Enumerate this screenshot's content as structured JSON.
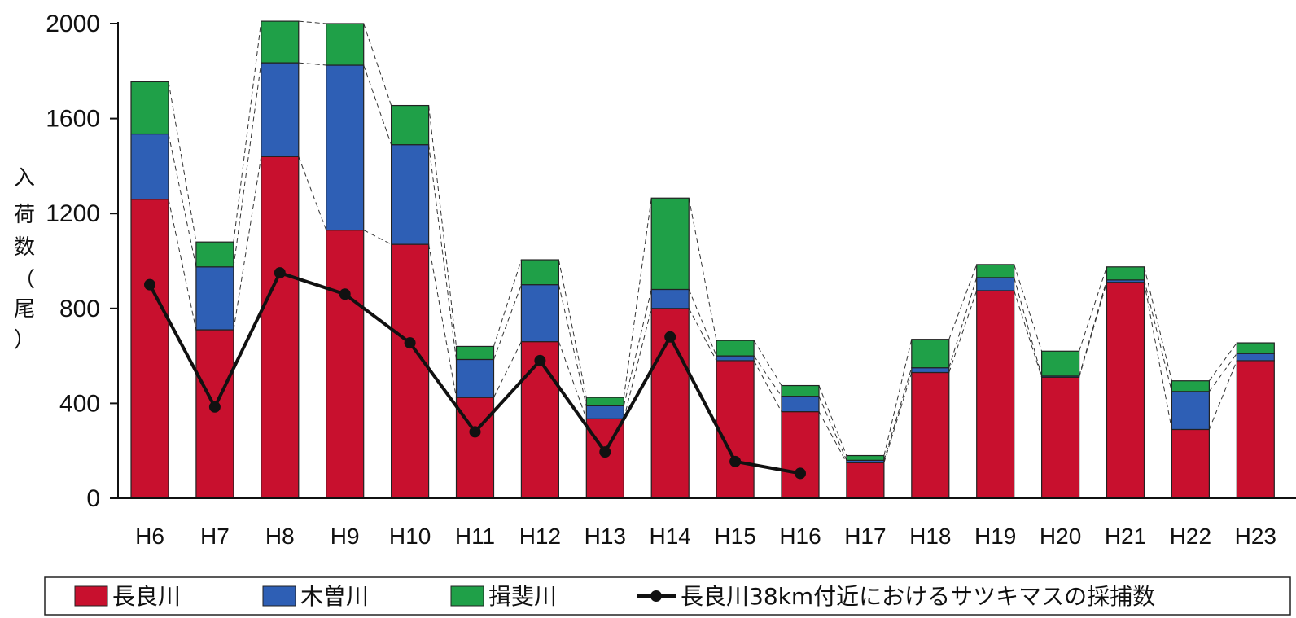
{
  "chart_data": {
    "type": "bar",
    "stacked": true,
    "categories": [
      "H6",
      "H7",
      "H8",
      "H9",
      "H10",
      "H11",
      "H12",
      "H13",
      "H14",
      "H15",
      "H16",
      "H17",
      "H18",
      "H19",
      "H20",
      "H21",
      "H22",
      "H23"
    ],
    "series": [
      {
        "name": "長良川",
        "color": "#c8102e",
        "values": [
          1260,
          710,
          1440,
          1130,
          1070,
          425,
          660,
          335,
          800,
          580,
          365,
          150,
          530,
          875,
          510,
          910,
          290,
          580
        ]
      },
      {
        "name": "木曽川",
        "color": "#2e5fb5",
        "values": [
          275,
          265,
          395,
          695,
          420,
          160,
          240,
          55,
          80,
          20,
          65,
          10,
          20,
          55,
          5,
          10,
          160,
          30
        ]
      },
      {
        "name": "揖斐川",
        "color": "#1fa048",
        "values": [
          220,
          105,
          175,
          175,
          165,
          55,
          105,
          35,
          385,
          65,
          45,
          20,
          120,
          55,
          105,
          55,
          45,
          45
        ]
      }
    ],
    "line_series": {
      "name": "長良川38km付近におけるサツキマスの採捕数",
      "color": "#111111",
      "values": [
        900,
        385,
        950,
        860,
        655,
        280,
        580,
        195,
        680,
        155,
        105,
        null,
        null,
        null,
        null,
        null,
        null,
        null
      ]
    },
    "title": "",
    "xlabel": "",
    "ylabel": "入荷数（尾）",
    "ylabel_chars": [
      "入",
      "荷",
      "数",
      "（",
      "尾",
      "）"
    ],
    "ylim": [
      0,
      2000
    ],
    "yticks": [
      0,
      400,
      800,
      1200,
      1600,
      2000
    ],
    "connector_lines": "dashed",
    "grid": false,
    "legend_position": "bottom"
  }
}
